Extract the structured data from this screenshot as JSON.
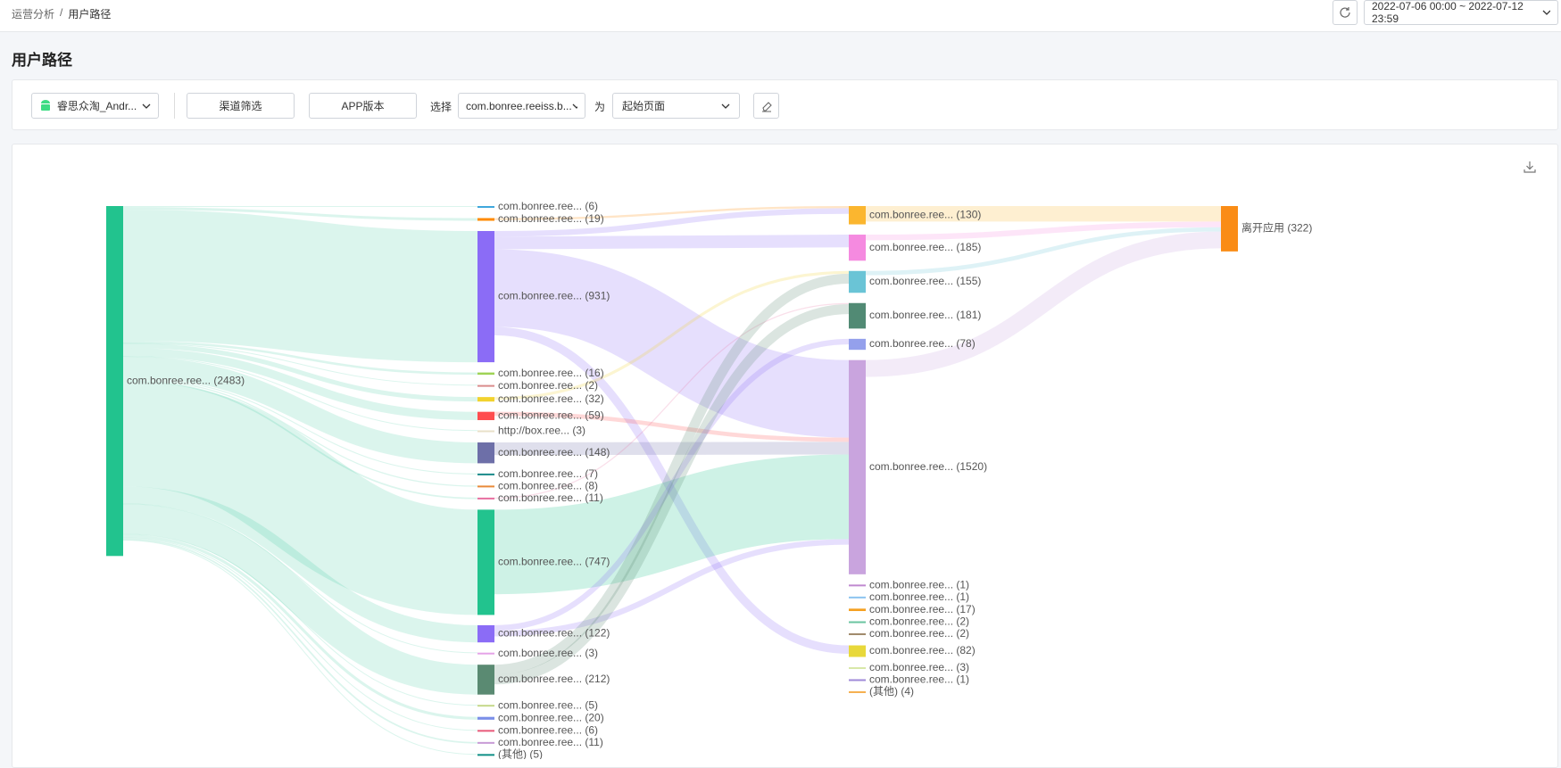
{
  "header": {
    "breadcrumb": [
      "运营分析",
      "用户路径"
    ],
    "separator": "/",
    "date_range": "2022-07-06 00:00 ~ 2022-07-12 23:59"
  },
  "page_title": "用户路径",
  "filters": {
    "app": "睿思众淘_Andr...",
    "channel": "渠道筛选",
    "app_version": "APP版本",
    "select_label": "选择",
    "page_select": "com.bonree.reeiss.b...",
    "as_label": "为",
    "position": "起始页面"
  },
  "chart_data": {
    "type": "sankey",
    "columns": [
      [
        {
          "label": "com.bonree.ree... (2483)",
          "value": 2483,
          "color": "#22c38e"
        }
      ],
      [
        {
          "label": "com.bonree.ree... (6)",
          "value": 6,
          "color": "#3fa7dc"
        },
        {
          "label": "com.bonree.ree... (19)",
          "value": 19,
          "color": "#ff8a00"
        },
        {
          "label": "com.bonree.ree... (931)",
          "value": 931,
          "color": "#8b6cf6"
        },
        {
          "label": "com.bonree.ree... (16)",
          "value": 16,
          "color": "#9fd356"
        },
        {
          "label": "com.bonree.ree... (2)",
          "value": 2,
          "color": "#d98c8c"
        },
        {
          "label": "com.bonree.ree... (32)",
          "value": 32,
          "color": "#f2d22e"
        },
        {
          "label": "com.bonree.ree... (59)",
          "value": 59,
          "color": "#ff4d4f"
        },
        {
          "label": "http://box.ree... (3)",
          "value": 3,
          "color": "#e8e0c8"
        },
        {
          "label": "com.bonree.ree... (148)",
          "value": 148,
          "color": "#6d6fa8"
        },
        {
          "label": "com.bonree.ree... (7)",
          "value": 7,
          "color": "#1a8a8a"
        },
        {
          "label": "com.bonree.ree... (8)",
          "value": 8,
          "color": "#e88a3a"
        },
        {
          "label": "com.bonree.ree... (11)",
          "value": 11,
          "color": "#e86fa0"
        },
        {
          "label": "com.bonree.ree... (747)",
          "value": 747,
          "color": "#22c38e"
        },
        {
          "label": "com.bonree.ree... (122)",
          "value": 122,
          "color": "#8b6cf6"
        },
        {
          "label": "com.bonree.ree... (3)",
          "value": 3,
          "color": "#e5a3e8"
        },
        {
          "label": "com.bonree.ree... (212)",
          "value": 212,
          "color": "#5a8a72"
        },
        {
          "label": "com.bonree.ree... (5)",
          "value": 5,
          "color": "#c5d88a"
        },
        {
          "label": "com.bonree.ree... (20)",
          "value": 20,
          "color": "#7b8fe8"
        },
        {
          "label": "com.bonree.ree... (6)",
          "value": 6,
          "color": "#e85a7a"
        },
        {
          "label": "com.bonree.ree... (11)",
          "value": 11,
          "color": "#c79ad6"
        },
        {
          "label": "(其他) (5)",
          "value": 5,
          "color": "#0f8f86"
        }
      ],
      [
        {
          "label": "com.bonree.ree... (130)",
          "value": 130,
          "color": "#fbb62f"
        },
        {
          "label": "com.bonree.ree... (185)",
          "value": 185,
          "color": "#f58ae0"
        },
        {
          "label": "com.bonree.ree... (155)",
          "value": 155,
          "color": "#6ac4d6"
        },
        {
          "label": "com.bonree.ree... (181)",
          "value": 181,
          "color": "#518a74"
        },
        {
          "label": "com.bonree.ree... (78)",
          "value": 78,
          "color": "#94a0ec"
        },
        {
          "label": "com.bonree.ree... (1520)",
          "value": 1520,
          "color": "#c9a4de"
        },
        {
          "label": "com.bonree.ree... (1)",
          "value": 1,
          "color": "#c08ad0"
        },
        {
          "label": "com.bonree.ree... (1)",
          "value": 1,
          "color": "#8cc4f0"
        },
        {
          "label": "com.bonree.ree... (17)",
          "value": 17,
          "color": "#f5a020"
        },
        {
          "label": "com.bonree.ree... (2)",
          "value": 2,
          "color": "#6ac4a0"
        },
        {
          "label": "com.bonree.ree... (2)",
          "value": 2,
          "color": "#a08a6a"
        },
        {
          "label": "com.bonree.ree... (82)",
          "value": 82,
          "color": "#e8d83a"
        },
        {
          "label": "com.bonree.ree... (3)",
          "value": 3,
          "color": "#d8e8a8"
        },
        {
          "label": "com.bonree.ree... (1)",
          "value": 1,
          "color": "#a08ad8"
        },
        {
          "label": "(其他) (4)",
          "value": 4,
          "color": "#f5b050"
        }
      ],
      [
        {
          "label": "离开应用 (322)",
          "value": 322,
          "color": "#fa8c16"
        }
      ]
    ],
    "links": [
      {
        "source": [
          0,
          0
        ],
        "target": [
          1,
          0
        ],
        "value": 6
      },
      {
        "source": [
          0,
          0
        ],
        "target": [
          1,
          1
        ],
        "value": 19
      },
      {
        "source": [
          0,
          0
        ],
        "target": [
          1,
          2
        ],
        "value": 931
      },
      {
        "source": [
          0,
          0
        ],
        "target": [
          1,
          3
        ],
        "value": 16
      },
      {
        "source": [
          0,
          0
        ],
        "target": [
          1,
          4
        ],
        "value": 2
      },
      {
        "source": [
          0,
          0
        ],
        "target": [
          1,
          5
        ],
        "value": 32
      },
      {
        "source": [
          0,
          0
        ],
        "target": [
          1,
          6
        ],
        "value": 59
      },
      {
        "source": [
          0,
          0
        ],
        "target": [
          1,
          7
        ],
        "value": 3
      },
      {
        "source": [
          0,
          0
        ],
        "target": [
          1,
          8
        ],
        "value": 148
      },
      {
        "source": [
          0,
          0
        ],
        "target": [
          1,
          9
        ],
        "value": 7
      },
      {
        "source": [
          0,
          0
        ],
        "target": [
          1,
          10
        ],
        "value": 8
      },
      {
        "source": [
          0,
          0
        ],
        "target": [
          1,
          11
        ],
        "value": 11
      },
      {
        "source": [
          0,
          0
        ],
        "target": [
          1,
          12
        ],
        "value": 747
      },
      {
        "source": [
          0,
          0
        ],
        "target": [
          1,
          13
        ],
        "value": 122
      },
      {
        "source": [
          0,
          0
        ],
        "target": [
          1,
          14
        ],
        "value": 3
      },
      {
        "source": [
          0,
          0
        ],
        "target": [
          1,
          15
        ],
        "value": 212
      },
      {
        "source": [
          0,
          0
        ],
        "target": [
          1,
          16
        ],
        "value": 5
      },
      {
        "source": [
          0,
          0
        ],
        "target": [
          1,
          17
        ],
        "value": 20
      },
      {
        "source": [
          0,
          0
        ],
        "target": [
          1,
          18
        ],
        "value": 6
      },
      {
        "source": [
          0,
          0
        ],
        "target": [
          1,
          19
        ],
        "value": 11
      },
      {
        "source": [
          0,
          0
        ],
        "target": [
          1,
          20
        ],
        "value": 5
      },
      {
        "source": [
          1,
          1
        ],
        "target": [
          2,
          0
        ],
        "value": 15
      },
      {
        "source": [
          1,
          2
        ],
        "target": [
          2,
          0
        ],
        "value": 40
      },
      {
        "source": [
          1,
          2
        ],
        "target": [
          2,
          1
        ],
        "value": 90
      },
      {
        "source": [
          1,
          2
        ],
        "target": [
          2,
          5
        ],
        "value": 550
      },
      {
        "source": [
          1,
          2
        ],
        "target": [
          2,
          11
        ],
        "value": 60
      },
      {
        "source": [
          1,
          5
        ],
        "target": [
          2,
          2
        ],
        "value": 20
      },
      {
        "source": [
          1,
          6
        ],
        "target": [
          2,
          5
        ],
        "value": 30
      },
      {
        "source": [
          1,
          8
        ],
        "target": [
          2,
          5
        ],
        "value": 90
      },
      {
        "source": [
          1,
          11
        ],
        "target": [
          2,
          3
        ],
        "value": 8
      },
      {
        "source": [
          1,
          12
        ],
        "target": [
          2,
          5
        ],
        "value": 600
      },
      {
        "source": [
          1,
          13
        ],
        "target": [
          2,
          4
        ],
        "value": 40
      },
      {
        "source": [
          1,
          13
        ],
        "target": [
          2,
          5
        ],
        "value": 40
      },
      {
        "source": [
          1,
          15
        ],
        "target": [
          2,
          2
        ],
        "value": 70
      },
      {
        "source": [
          1,
          15
        ],
        "target": [
          2,
          3
        ],
        "value": 70
      },
      {
        "source": [
          2,
          0
        ],
        "target": [
          3,
          0
        ],
        "value": 110
      },
      {
        "source": [
          2,
          1
        ],
        "target": [
          3,
          0
        ],
        "value": 40
      },
      {
        "source": [
          2,
          2
        ],
        "target": [
          3,
          0
        ],
        "value": 30
      },
      {
        "source": [
          2,
          5
        ],
        "target": [
          3,
          0
        ],
        "value": 120
      }
    ]
  }
}
